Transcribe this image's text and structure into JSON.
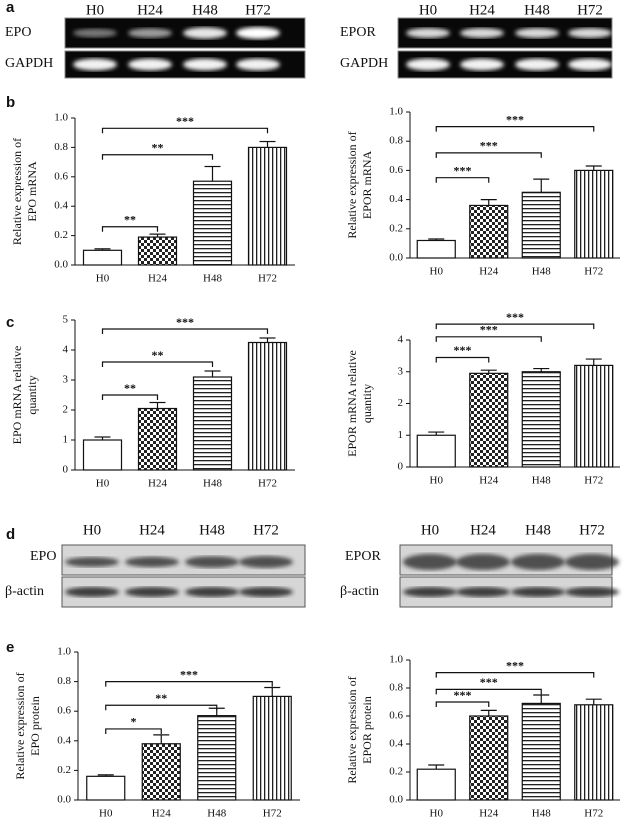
{
  "panel_labels": [
    "a",
    "b",
    "c",
    "d",
    "e"
  ],
  "blots": [
    {
      "lanes": [
        "H0",
        "H24",
        "H48",
        "H72"
      ],
      "rows": [
        "EPO",
        "GAPDH"
      ]
    },
    {
      "lanes": [
        "H0",
        "H24",
        "H48",
        "H72"
      ],
      "rows": [
        "EPOR",
        "GAPDH"
      ]
    },
    {
      "lanes": [
        "H0",
        "H24",
        "H48",
        "H72"
      ],
      "rows": [
        "EPO",
        "β-actin"
      ]
    },
    {
      "lanes": [
        "H0",
        "H24",
        "H48",
        "H72"
      ],
      "rows": [
        "EPOR",
        "β-actin"
      ]
    }
  ],
  "chart_data": [
    {
      "type": "bar",
      "ylabel": [
        "Relative expression of",
        "EPO mRNA"
      ],
      "categories": [
        "H0",
        "H24",
        "H48",
        "H72"
      ],
      "values": [
        0.1,
        0.19,
        0.57,
        0.8
      ],
      "errors": [
        0.01,
        0.02,
        0.1,
        0.04
      ],
      "ylim": [
        0,
        1
      ],
      "yticks": [
        {
          "value": 0,
          "label": "0.0"
        },
        {
          "value": 0.2,
          "label": "0.2"
        },
        {
          "value": 0.4,
          "label": "0.4"
        },
        {
          "value": 0.6,
          "label": "0.6"
        },
        {
          "value": 0.8,
          "label": "0.8"
        },
        {
          "value": 1,
          "label": "1.0"
        }
      ],
      "annotations": [
        {
          "text": "**",
          "from": 0,
          "to": 1,
          "y": 0.26
        },
        {
          "text": "**",
          "from": 0,
          "to": 2,
          "y": 0.75
        },
        {
          "text": "***",
          "from": 0,
          "to": 3,
          "y": 0.93
        }
      ]
    },
    {
      "type": "bar",
      "ylabel": [
        "Relative expression of",
        "EPOR mRNA"
      ],
      "categories": [
        "H0",
        "H24",
        "H48",
        "H72"
      ],
      "values": [
        0.12,
        0.36,
        0.45,
        0.6
      ],
      "errors": [
        0.01,
        0.04,
        0.09,
        0.03
      ],
      "ylim": [
        0,
        1
      ],
      "yticks": [
        {
          "value": 0,
          "label": "0.0"
        },
        {
          "value": 0.2,
          "label": "0.2"
        },
        {
          "value": 0.4,
          "label": "0.4"
        },
        {
          "value": 0.6,
          "label": "0.6"
        },
        {
          "value": 0.8,
          "label": "0.8"
        },
        {
          "value": 1,
          "label": "1.0"
        }
      ],
      "annotations": [
        {
          "text": "***",
          "from": 0,
          "to": 1,
          "y": 0.55
        },
        {
          "text": "***",
          "from": 0,
          "to": 2,
          "y": 0.72
        },
        {
          "text": "***",
          "from": 0,
          "to": 3,
          "y": 0.9
        }
      ]
    },
    {
      "type": "bar",
      "ylabel": [
        "EPO mRNA relative",
        "quantity"
      ],
      "categories": [
        "H0",
        "H24",
        "H48",
        "H72"
      ],
      "values": [
        1.0,
        2.05,
        3.1,
        4.25
      ],
      "errors": [
        0.1,
        0.2,
        0.2,
        0.15
      ],
      "ylim": [
        0,
        5
      ],
      "yticks": [
        0,
        1,
        2,
        3,
        4,
        5
      ],
      "annotations": [
        {
          "text": "**",
          "from": 0,
          "to": 1,
          "y": 2.5
        },
        {
          "text": "**",
          "from": 0,
          "to": 2,
          "y": 3.6
        },
        {
          "text": "***",
          "from": 0,
          "to": 3,
          "y": 4.7
        }
      ]
    },
    {
      "type": "bar",
      "ylabel": [
        "EPOR mRNA relative",
        "quantity"
      ],
      "categories": [
        "H0",
        "H24",
        "H48",
        "H72"
      ],
      "values": [
        1.0,
        2.95,
        3.0,
        3.2
      ],
      "errors": [
        0.1,
        0.1,
        0.1,
        0.2
      ],
      "ylim": [
        0,
        4
      ],
      "yticks": [
        0,
        1,
        2,
        3,
        4
      ],
      "annotations": [
        {
          "text": "***",
          "from": 0,
          "to": 1,
          "y": 3.45
        },
        {
          "text": "***",
          "from": 0,
          "to": 2,
          "y": 4.1
        },
        {
          "text": "***",
          "from": 0,
          "to": 3,
          "y": 4.5
        }
      ]
    },
    {
      "type": "bar",
      "ylabel": [
        "Relative expression of",
        "EPO protein"
      ],
      "categories": [
        "H0",
        "H24",
        "H48",
        "H72"
      ],
      "values": [
        0.16,
        0.38,
        0.57,
        0.7
      ],
      "errors": [
        0.01,
        0.06,
        0.05,
        0.06
      ],
      "ylim": [
        0,
        1
      ],
      "yticks": [
        {
          "value": 0,
          "label": "0.0"
        },
        {
          "value": 0.2,
          "label": "0.2"
        },
        {
          "value": 0.4,
          "label": "0.4"
        },
        {
          "value": 0.6,
          "label": "0.6"
        },
        {
          "value": 0.8,
          "label": "0.8"
        },
        {
          "value": 1,
          "label": "1.0"
        }
      ],
      "annotations": [
        {
          "text": "*",
          "from": 0,
          "to": 1,
          "y": 0.48
        },
        {
          "text": "**",
          "from": 0,
          "to": 2,
          "y": 0.64
        },
        {
          "text": "***",
          "from": 0,
          "to": 3,
          "y": 0.8
        }
      ]
    },
    {
      "type": "bar",
      "ylabel": [
        "Relative expression of",
        "EPOR protein"
      ],
      "categories": [
        "H0",
        "H24",
        "H48",
        "H72"
      ],
      "values": [
        0.22,
        0.6,
        0.69,
        0.68
      ],
      "errors": [
        0.03,
        0.04,
        0.06,
        0.04
      ],
      "ylim": [
        0,
        1
      ],
      "yticks": [
        {
          "value": 0,
          "label": "0.0"
        },
        {
          "value": 0.2,
          "label": "0.2"
        },
        {
          "value": 0.4,
          "label": "0.4"
        },
        {
          "value": 0.6,
          "label": "0.6"
        },
        {
          "value": 0.8,
          "label": "0.8"
        },
        {
          "value": 1,
          "label": "1.0"
        }
      ],
      "annotations": [
        {
          "text": "***",
          "from": 0,
          "to": 1,
          "y": 0.7
        },
        {
          "text": "***",
          "from": 0,
          "to": 2,
          "y": 0.79
        },
        {
          "text": "***",
          "from": 0,
          "to": 3,
          "y": 0.91
        }
      ]
    }
  ]
}
